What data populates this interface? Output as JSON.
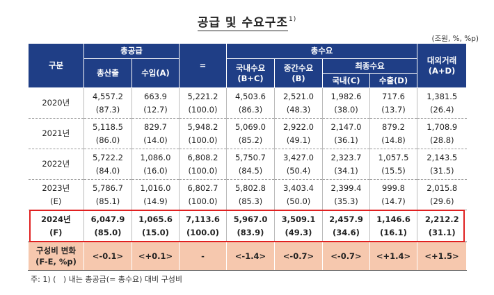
{
  "title": "공급 및 수요구조",
  "title_note": "1)",
  "unit": "(조원, %, %p)",
  "headers": {
    "category": "구분",
    "total_supply": "총공급",
    "production": "총산출",
    "imports": "수입(A)",
    "equals": "=",
    "total_demand": "총수요",
    "domestic_demand_1": "국내수요",
    "domestic_demand_2": "(B+C)",
    "intermediate_demand_1": "중간수요",
    "intermediate_demand_2": "(B)",
    "final_demand": "최종수요",
    "final_domestic": "국내(C)",
    "final_exports": "수출(D)",
    "external_1": "대외거래",
    "external_2": "(A+D)"
  },
  "rows": [
    {
      "label": "2020년",
      "sub": "",
      "values": [
        "4,557.2",
        "663.9",
        "5,221.2",
        "4,503.6",
        "2,521.0",
        "1,982.6",
        "717.6",
        "1,381.5"
      ],
      "shares": [
        "(87.3)",
        "(12.7)",
        "(100.0)",
        "(86.3)",
        "(48.3)",
        "(38.0)",
        "(13.7)",
        "(26.4)"
      ]
    },
    {
      "label": "2021년",
      "sub": "",
      "values": [
        "5,118.5",
        "829.7",
        "5,948.2",
        "5,069.0",
        "2,922.0",
        "2,147.0",
        "879.2",
        "1,708.9"
      ],
      "shares": [
        "(86.0)",
        "(14.0)",
        "(100.0)",
        "(85.2)",
        "(49.1)",
        "(36.1)",
        "(14.8)",
        "(28.8)"
      ]
    },
    {
      "label": "2022년",
      "sub": "",
      "values": [
        "5,722.2",
        "1,086.0",
        "6,808.2",
        "5,750.7",
        "3,427.0",
        "2,323.7",
        "1,057.5",
        "2,143.5"
      ],
      "shares": [
        "(84.0)",
        "(16.0)",
        "(100.0)",
        "(84.5)",
        "(50.4)",
        "(34.1)",
        "(15.5)",
        "(31.5)"
      ]
    },
    {
      "label": "2023년",
      "sub": "(E)",
      "values": [
        "5,786.7",
        "1,016.0",
        "6,802.7",
        "5,802.8",
        "3,403.4",
        "2,399.4",
        "999.8",
        "2,015.8"
      ],
      "shares": [
        "(85.1)",
        "(14.9)",
        "(100.0)",
        "(85.3)",
        "(50.0)",
        "(35.3)",
        "(14.7)",
        "(29.6)"
      ]
    },
    {
      "label": "2024년",
      "sub": "(F)",
      "values": [
        "6,047.9",
        "1,065.6",
        "7,113.6",
        "5,967.0",
        "3,509.1",
        "2,457.9",
        "1,146.6",
        "2,212.2"
      ],
      "shares": [
        "(85.0)",
        "(15.0)",
        "(100.0)",
        "(83.9)",
        "(49.3)",
        "(34.6)",
        "(16.1)",
        "(31.1)"
      ]
    }
  ],
  "change_row": {
    "label_1": "구성비 변화",
    "label_2": "(F-E, %p)",
    "values": [
      "<-0.1>",
      "<+0.1>",
      "-",
      "<-1.4>",
      "<-0.7>",
      "<-0.7>",
      "<+1.4>",
      "<+1.5>"
    ]
  },
  "footnote": "주: 1) (   ) 내는 총공급(= 총수요) 대비 구성비"
}
